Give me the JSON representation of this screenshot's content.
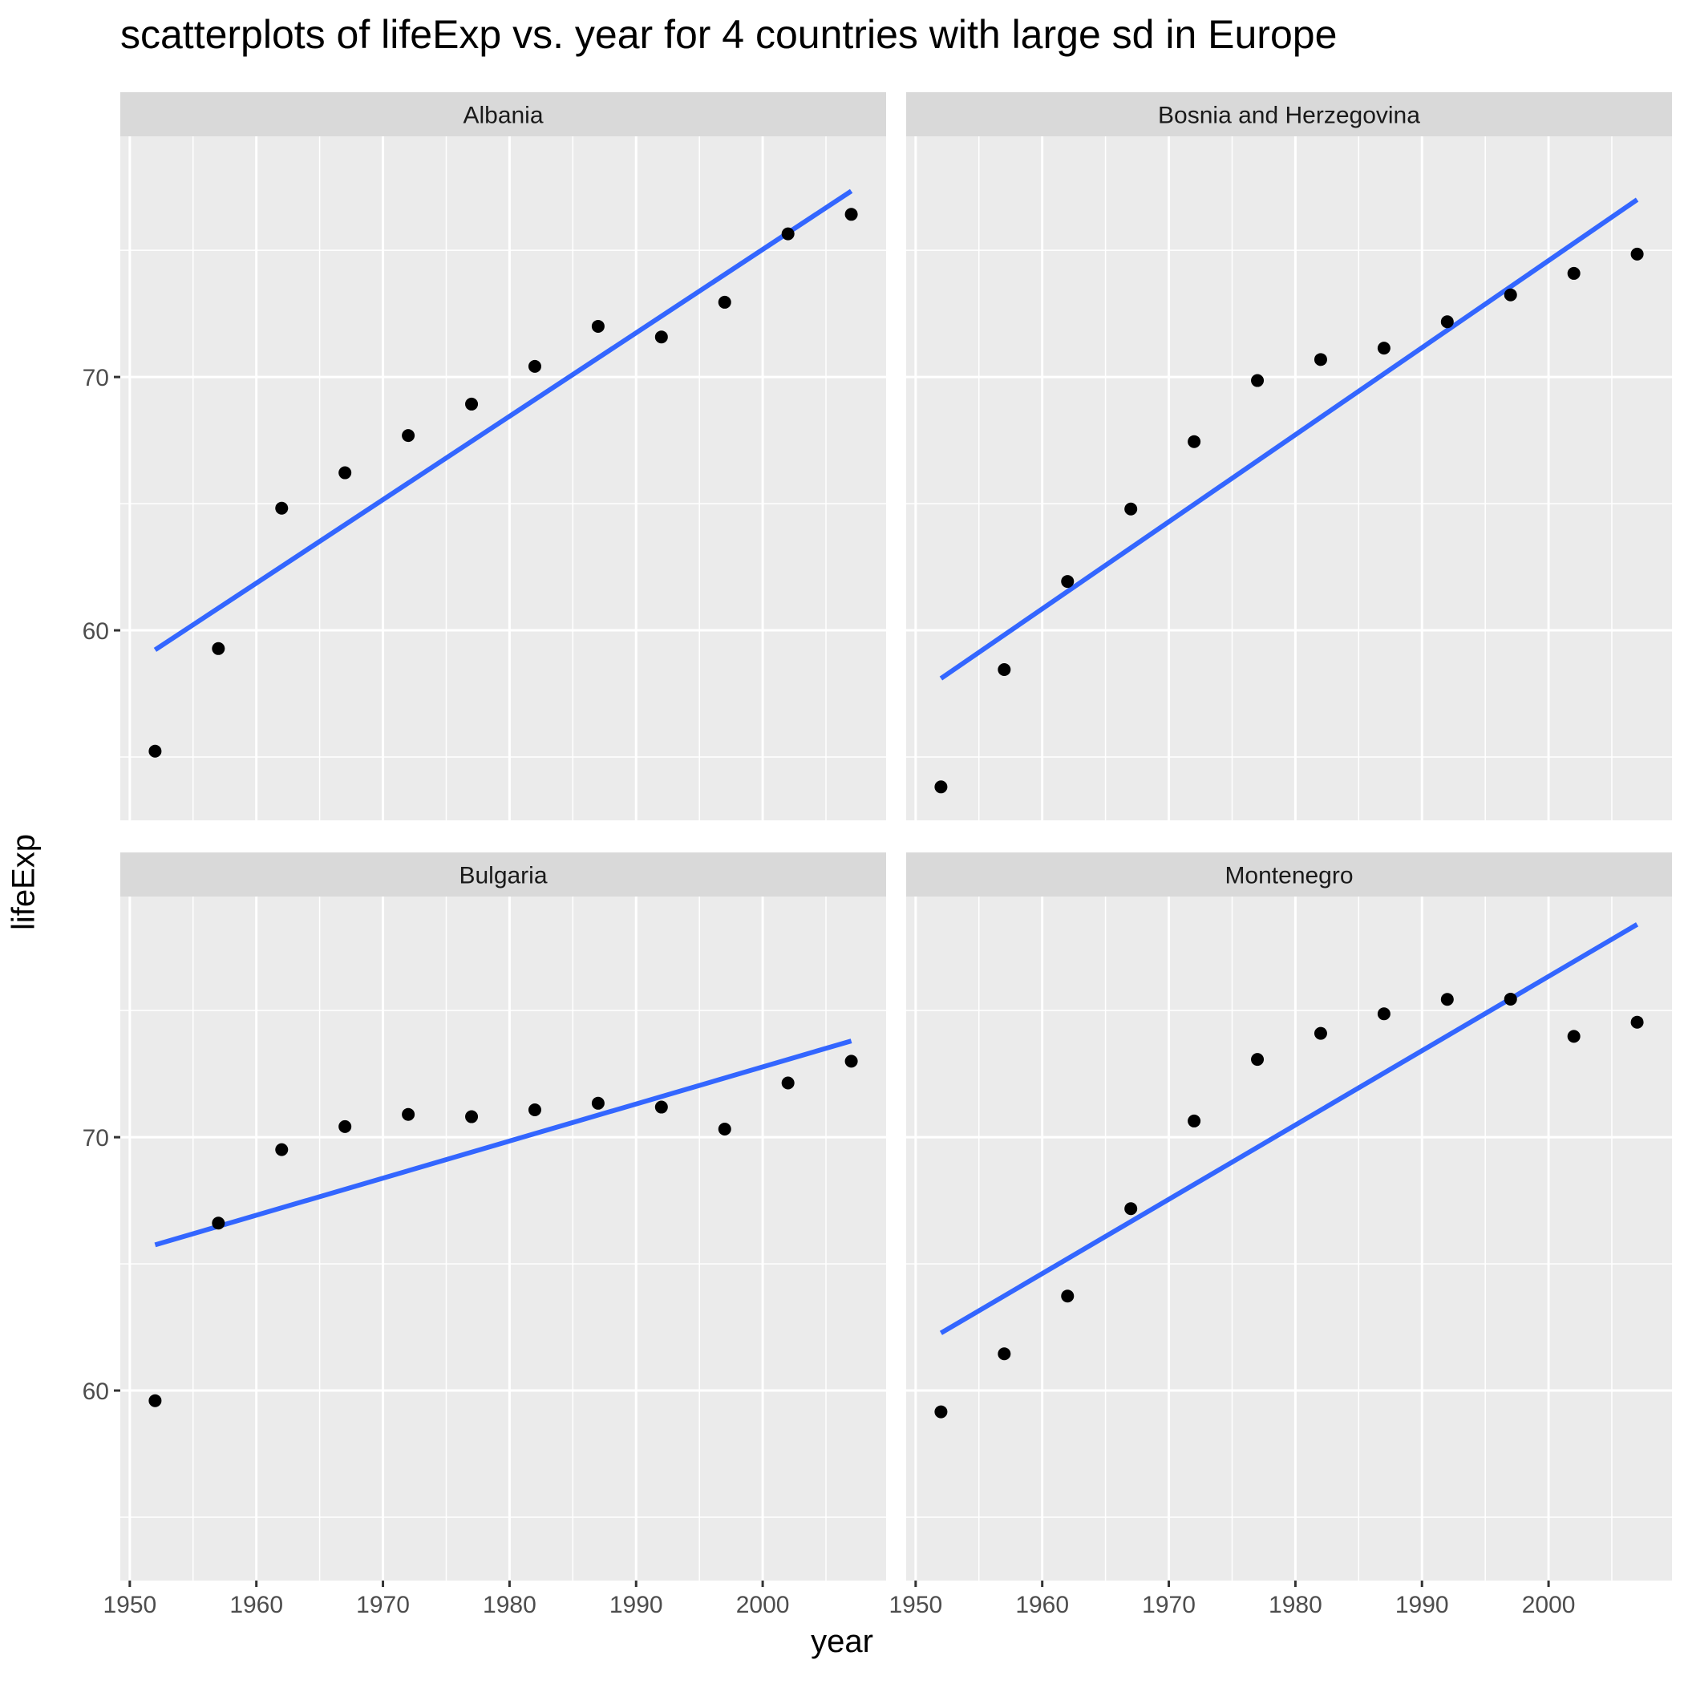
{
  "title": "scatterplots of lifeExp vs. year for 4 countries with large sd in Europe",
  "colors": {
    "panel_bg": "#ebebeb",
    "strip_bg": "#d9d9d9",
    "grid": "#ffffff",
    "points": "#000000",
    "fit_line": "#3366ff"
  },
  "chart_data": {
    "type": "scatter",
    "facet": "country",
    "xlabel": "year",
    "ylabel": "lifeExp",
    "xlim": [
      1949.25,
      2009.75
    ],
    "ylim": [
      52.5,
      79.5
    ],
    "x_ticks": [
      1950,
      1960,
      1970,
      1980,
      1990,
      2000
    ],
    "y_ticks": [
      60,
      70
    ],
    "grid": true,
    "overlay": "linear fit",
    "x": [
      1952,
      1957,
      1962,
      1967,
      1972,
      1977,
      1982,
      1987,
      1992,
      1997,
      2002,
      2007
    ],
    "panels": [
      {
        "name": "Albania",
        "values": [
          55.23,
          59.28,
          64.82,
          66.22,
          67.69,
          68.93,
          70.42,
          72.0,
          71.58,
          72.95,
          75.65,
          76.42
        ],
        "fit": [
          59.23,
          77.34
        ]
      },
      {
        "name": "Bosnia and Herzegovina",
        "values": [
          53.82,
          58.45,
          61.93,
          64.79,
          67.45,
          69.86,
          70.69,
          71.14,
          72.18,
          73.24,
          74.09,
          74.85
        ],
        "fit": [
          58.1,
          77.0
        ]
      },
      {
        "name": "Bulgaria",
        "values": [
          59.6,
          66.61,
          69.51,
          70.42,
          70.9,
          70.81,
          71.08,
          71.34,
          71.19,
          70.32,
          72.14,
          73.0
        ],
        "fit": [
          65.75,
          73.8
        ]
      },
      {
        "name": "Montenegro",
        "values": [
          59.16,
          61.45,
          63.73,
          67.18,
          70.64,
          73.07,
          74.1,
          74.87,
          75.44,
          75.45,
          73.98,
          74.54
        ],
        "fit": [
          62.27,
          78.4
        ]
      }
    ]
  }
}
